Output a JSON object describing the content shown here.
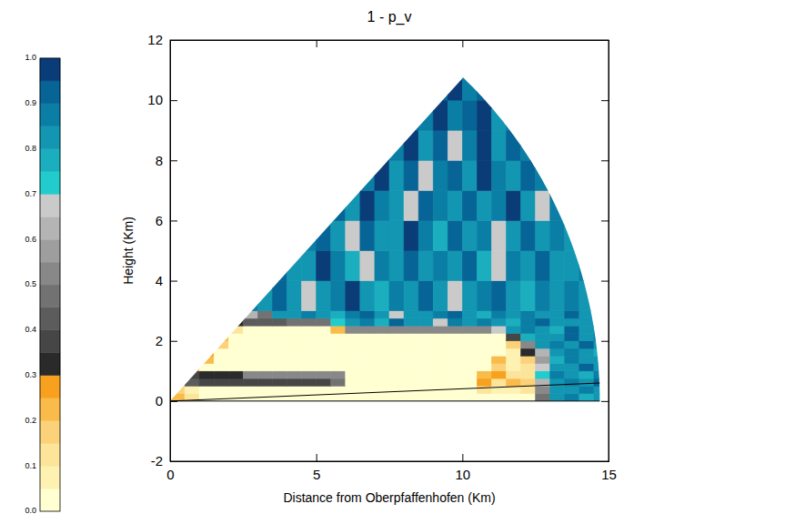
{
  "chart_data": {
    "type": "heatmap",
    "title": "1 - p_v",
    "x_label": "Distance from Oberpfaffenhofen (Km)",
    "y_label": "Height (Km)",
    "xlim": [
      0,
      15
    ],
    "ylim": [
      -2,
      12
    ],
    "xticks": [
      0,
      5,
      10,
      15
    ],
    "yticks": [
      -2,
      0,
      2,
      4,
      6,
      8,
      10,
      12
    ],
    "x_edges": [
      0,
      0.5,
      1,
      1.5,
      2,
      2.5,
      3,
      3.5,
      4,
      4.5,
      5,
      5.5,
      6,
      6.5,
      7,
      7.5,
      8,
      8.5,
      9,
      9.5,
      10,
      10.5,
      11,
      11.5,
      12,
      12.5,
      13,
      13.5,
      14,
      14.5,
      15
    ],
    "y_edges": [
      0,
      0.25,
      0.5,
      0.75,
      1,
      1.25,
      1.5,
      1.75,
      2,
      2.25,
      2.5,
      2.75,
      3,
      4,
      5,
      6,
      7,
      8,
      9,
      10,
      11
    ],
    "cells": [
      [
        0.22,
        0.1,
        0.02,
        0.02,
        0.02,
        0.02,
        0.02,
        0.02,
        0.02,
        0.02,
        0.02,
        0.02,
        0.02,
        0.02,
        0.02,
        0.02,
        0.02,
        0.02,
        0.02,
        0.02,
        0.02,
        0.02,
        0.02,
        0.02,
        0.02,
        0.45,
        0.8,
        0.85,
        0.78,
        0.82
      ],
      [
        0.15,
        0.05,
        0.03,
        0.03,
        0.03,
        0.03,
        0.03,
        0.03,
        0.03,
        0.03,
        0.03,
        0.03,
        0.03,
        0.03,
        0.03,
        0.03,
        0.03,
        0.03,
        0.03,
        0.03,
        0.03,
        0.1,
        0.08,
        0.05,
        0.1,
        0.5,
        0.82,
        0.8,
        0.88,
        0.8
      ],
      [
        null,
        0.4,
        0.36,
        0.36,
        0.36,
        0.36,
        0.36,
        0.36,
        0.36,
        0.36,
        0.36,
        0.45,
        0.02,
        0.02,
        0.02,
        0.02,
        0.02,
        0.02,
        0.02,
        0.02,
        0.02,
        0.25,
        0.12,
        0.2,
        0.15,
        0.6,
        0.8,
        0.85,
        0.8,
        0.9
      ],
      [
        null,
        0.38,
        0.33,
        0.33,
        0.33,
        0.5,
        0.5,
        0.5,
        0.5,
        0.5,
        0.5,
        0.5,
        0.02,
        0.02,
        0.02,
        0.02,
        0.02,
        0.02,
        0.02,
        0.02,
        0.02,
        0.2,
        0.27,
        0.1,
        0.12,
        0.7,
        0.85,
        0.8,
        0.78,
        0.85
      ],
      [
        null,
        0.25,
        0.02,
        0.02,
        0.02,
        0.02,
        0.02,
        0.02,
        0.02,
        0.02,
        0.02,
        0.02,
        0.02,
        0.02,
        0.02,
        0.02,
        0.02,
        0.02,
        0.02,
        0.02,
        0.02,
        0.02,
        0.15,
        0.05,
        0.1,
        0.65,
        0.8,
        0.82,
        0.9,
        0.8
      ],
      [
        null,
        null,
        0.2,
        0.02,
        0.02,
        0.02,
        0.02,
        0.02,
        0.02,
        0.02,
        0.02,
        0.02,
        0.02,
        0.02,
        0.02,
        0.02,
        0.02,
        0.02,
        0.02,
        0.02,
        0.02,
        0.02,
        0.22,
        0.05,
        0.15,
        0.55,
        0.78,
        0.85,
        0.8,
        0.82
      ],
      [
        null,
        null,
        0.25,
        0.02,
        0.02,
        0.02,
        0.02,
        0.02,
        0.02,
        0.02,
        0.02,
        0.02,
        0.02,
        0.02,
        0.02,
        0.02,
        0.02,
        0.02,
        0.02,
        0.02,
        0.02,
        0.02,
        0.02,
        0.08,
        0.3,
        0.62,
        0.8,
        0.88,
        0.8,
        0.78
      ],
      [
        null,
        null,
        null,
        0.15,
        0.02,
        0.02,
        0.02,
        0.02,
        0.02,
        0.02,
        0.02,
        0.02,
        0.02,
        0.02,
        0.02,
        0.02,
        0.02,
        0.02,
        0.02,
        0.02,
        0.02,
        0.02,
        0.02,
        0.15,
        0.5,
        0.8,
        0.85,
        0.8,
        0.9,
        0.8
      ],
      [
        null,
        null,
        null,
        0.2,
        0.03,
        0.03,
        0.03,
        0.03,
        0.03,
        0.03,
        0.03,
        0.03,
        0.03,
        0.03,
        0.03,
        0.03,
        0.03,
        0.03,
        0.03,
        0.03,
        0.03,
        0.03,
        0.03,
        0.35,
        0.75,
        0.8,
        0.82,
        0.9,
        0.8,
        0.85
      ],
      [
        null,
        null,
        null,
        null,
        0.1,
        0.04,
        0.04,
        0.04,
        0.04,
        0.04,
        0.04,
        0.2,
        0.5,
        0.5,
        0.5,
        0.5,
        0.5,
        0.5,
        0.5,
        0.5,
        0.5,
        0.5,
        0.68,
        0.8,
        0.85,
        0.8,
        0.78,
        0.9,
        0.82,
        0.8
      ],
      [
        null,
        null,
        null,
        null,
        0.3,
        0.4,
        0.4,
        0.4,
        0.45,
        0.45,
        0.45,
        0.72,
        0.8,
        0.85,
        0.78,
        0.9,
        0.82,
        0.8,
        0.68,
        0.85,
        0.8,
        0.88,
        0.8,
        0.78,
        0.85,
        0.9,
        0.8,
        0.82,
        0.8,
        null
      ],
      [
        null,
        null,
        null,
        null,
        null,
        0.6,
        0.45,
        0.8,
        0.82,
        0.88,
        0.8,
        0.78,
        0.85,
        0.9,
        0.8,
        0.68,
        0.82,
        0.8,
        0.85,
        0.92,
        0.8,
        0.78,
        0.85,
        0.8,
        0.88,
        0.82,
        0.8,
        0.9,
        0.8,
        null
      ],
      [
        null,
        null,
        null,
        null,
        null,
        0.85,
        0.8,
        0.9,
        0.82,
        0.68,
        0.8,
        0.88,
        0.95,
        0.8,
        0.78,
        0.85,
        0.8,
        0.9,
        0.82,
        0.68,
        0.8,
        0.85,
        0.92,
        0.8,
        0.78,
        0.88,
        0.8,
        0.85,
        0.82,
        null
      ],
      [
        null,
        null,
        null,
        null,
        null,
        null,
        null,
        0.9,
        0.82,
        0.8,
        0.95,
        0.85,
        0.78,
        0.68,
        0.88,
        0.8,
        0.9,
        0.82,
        0.85,
        0.8,
        0.92,
        0.78,
        0.68,
        0.85,
        0.8,
        0.9,
        0.82,
        0.8,
        0.85,
        null
      ],
      [
        null,
        null,
        null,
        null,
        null,
        null,
        null,
        null,
        null,
        0.85,
        0.9,
        0.8,
        0.68,
        0.92,
        0.82,
        0.8,
        0.95,
        0.85,
        0.78,
        0.9,
        0.8,
        0.88,
        0.68,
        0.82,
        0.9,
        0.8,
        0.85,
        0.8,
        null,
        null
      ],
      [
        null,
        null,
        null,
        null,
        null,
        null,
        null,
        null,
        null,
        null,
        null,
        0.9,
        0.82,
        0.95,
        0.85,
        0.8,
        0.68,
        0.9,
        0.88,
        0.82,
        0.92,
        0.8,
        0.85,
        0.95,
        0.8,
        0.68,
        0.85,
        null,
        null,
        null
      ],
      [
        null,
        null,
        null,
        null,
        null,
        null,
        null,
        null,
        null,
        null,
        null,
        null,
        null,
        0.88,
        0.95,
        0.82,
        0.9,
        0.68,
        0.85,
        0.92,
        0.8,
        0.95,
        0.88,
        0.82,
        0.9,
        0.85,
        null,
        null,
        null,
        null
      ],
      [
        null,
        null,
        null,
        null,
        null,
        null,
        null,
        null,
        null,
        null,
        null,
        null,
        null,
        null,
        0.9,
        0.85,
        0.95,
        0.8,
        0.92,
        0.68,
        0.88,
        0.95,
        0.82,
        0.9,
        0.85,
        null,
        null,
        null,
        null,
        null
      ],
      [
        null,
        null,
        null,
        null,
        null,
        null,
        null,
        null,
        null,
        null,
        null,
        null,
        null,
        null,
        null,
        null,
        0.92,
        0.88,
        0.95,
        0.85,
        0.9,
        0.95,
        0.82,
        0.88,
        null,
        null,
        null,
        null,
        null,
        null
      ],
      [
        null,
        null,
        null,
        null,
        null,
        null,
        null,
        null,
        null,
        null,
        null,
        null,
        null,
        null,
        null,
        null,
        null,
        null,
        0.9,
        0.95,
        0.88,
        0.92,
        null,
        null,
        null,
        null,
        null,
        null,
        null,
        null
      ]
    ],
    "sector": {
      "range": 14.7,
      "elevation": 47
    },
    "line": {
      "x": [
        0,
        14.7
      ],
      "y": [
        0,
        0.6
      ]
    },
    "colorbar": {
      "range": [
        0,
        1
      ],
      "ticks": [
        {
          "value": 0,
          "label": "0.0"
        },
        {
          "value": 0.1,
          "label": "0.1"
        },
        {
          "value": 0.2,
          "label": "0.2"
        },
        {
          "value": 0.3,
          "label": "0.3"
        },
        {
          "value": 0.4,
          "label": "0.4"
        },
        {
          "value": 0.5,
          "label": "0.5"
        },
        {
          "value": 0.6,
          "label": "0.6"
        },
        {
          "value": 0.7,
          "label": "0.7"
        },
        {
          "value": 0.8,
          "label": "0.8"
        },
        {
          "value": 0.9,
          "label": "0.9"
        },
        {
          "value": 1,
          "label": "1.0"
        }
      ],
      "bounds": [
        0,
        0.05,
        0.1,
        0.15,
        0.2,
        0.25,
        0.3,
        0.35,
        0.4,
        0.45,
        0.5,
        0.55,
        0.6,
        0.65,
        0.7,
        0.75,
        0.8,
        0.85,
        0.9,
        0.95,
        1
      ],
      "colors": [
        "#ffffd2",
        "#fdf2b2",
        "#fce49a",
        "#fbd27a",
        "#f9bb4a",
        "#f7a11e",
        "#2a2a2a",
        "#464646",
        "#5c5c5c",
        "#727272",
        "#888888",
        "#9e9e9e",
        "#b4b4b4",
        "#cacaca",
        "#22cccc",
        "#1aaebe",
        "#1296b2",
        "#0a7ea4",
        "#066496",
        "#0a3c78"
      ]
    }
  }
}
